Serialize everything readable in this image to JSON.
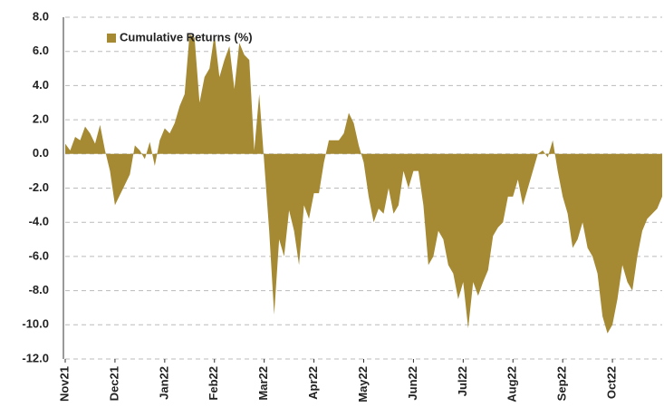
{
  "chart_data": {
    "type": "area",
    "series": [
      {
        "name": "Cumulative Returns (%)",
        "color": "#a58a33",
        "values": [
          0.6,
          0.2,
          1.0,
          0.8,
          1.6,
          1.2,
          0.6,
          1.7,
          0.2,
          -1.0,
          -3.0,
          -2.4,
          -1.8,
          -1.2,
          0.5,
          0.2,
          -0.3,
          0.7,
          -0.7,
          0.8,
          1.5,
          1.2,
          1.8,
          2.8,
          3.5,
          7.0,
          6.8,
          3.0,
          4.5,
          5.0,
          7.0,
          4.5,
          5.5,
          6.3,
          3.8,
          6.5,
          5.8,
          5.5,
          0.2,
          3.5,
          -0.5,
          -4.5,
          -9.4,
          -5.0,
          -6.0,
          -3.3,
          -4.5,
          -6.5,
          -3.0,
          -3.8,
          -2.3,
          -2.3,
          -0.5,
          0.8,
          0.8,
          0.8,
          1.2,
          2.4,
          1.8,
          0.5,
          -0.5,
          -2.5,
          -4.0,
          -3.2,
          -3.5,
          -2.0,
          -3.5,
          -3.0,
          -1.0,
          -2.0,
          -1.0,
          -1.0,
          -3.0,
          -6.5,
          -6.0,
          -4.5,
          -5.0,
          -6.5,
          -7.0,
          -8.5,
          -7.5,
          -10.2,
          -7.5,
          -8.3,
          -7.5,
          -6.8,
          -4.8,
          -4.3,
          -4.0,
          -2.5,
          -2.5,
          -1.5,
          -3.0,
          -2.0,
          -1.0,
          0.0,
          0.2,
          -0.2,
          0.8,
          -1.0,
          -2.5,
          -3.5,
          -5.5,
          -5.0,
          -4.0,
          -5.5,
          -6.0,
          -7.0,
          -9.5,
          -10.5,
          -10.0,
          -8.5,
          -6.5,
          -7.5,
          -8.0,
          -6.0,
          -4.5,
          -3.8,
          -3.5,
          -3.2,
          -2.5
        ]
      }
    ],
    "categories": [
      "Nov21",
      null,
      null,
      null,
      null,
      null,
      null,
      null,
      null,
      null,
      "Dec21",
      null,
      null,
      null,
      null,
      null,
      null,
      null,
      null,
      null,
      "Jan22",
      null,
      null,
      null,
      null,
      null,
      null,
      null,
      null,
      null,
      "Feb22",
      null,
      null,
      null,
      null,
      null,
      null,
      null,
      null,
      null,
      "Mar22",
      null,
      null,
      null,
      null,
      null,
      null,
      null,
      null,
      null,
      "Apr22",
      null,
      null,
      null,
      null,
      null,
      null,
      null,
      null,
      null,
      "May22",
      null,
      null,
      null,
      null,
      null,
      null,
      null,
      null,
      null,
      "Jun22",
      null,
      null,
      null,
      null,
      null,
      null,
      null,
      null,
      null,
      "Jul22",
      null,
      null,
      null,
      null,
      null,
      null,
      null,
      null,
      null,
      "Aug22",
      null,
      null,
      null,
      null,
      null,
      null,
      null,
      null,
      null,
      "Sep22",
      null,
      null,
      null,
      null,
      null,
      null,
      null,
      null,
      null,
      "Oct22",
      null,
      null,
      null,
      null,
      null,
      null,
      null,
      null,
      null,
      null
    ],
    "ylim": [
      -12,
      8
    ],
    "yticks": [
      {
        "value": -12,
        "label": "-12.0"
      },
      {
        "value": -10,
        "label": "-10.0"
      },
      {
        "value": -8,
        "label": "-8.0"
      },
      {
        "value": -6,
        "label": "-6.0"
      },
      {
        "value": -4,
        "label": "-4.0"
      },
      {
        "value": -2,
        "label": "-2.0"
      },
      {
        "value": 0,
        "label": "0.0"
      },
      {
        "value": 2,
        "label": "2.0"
      },
      {
        "value": 4,
        "label": "4.0"
      },
      {
        "value": 6,
        "label": "6.0"
      },
      {
        "value": 8,
        "label": "8.0"
      }
    ],
    "grid": true,
    "legend": "upper left"
  }
}
